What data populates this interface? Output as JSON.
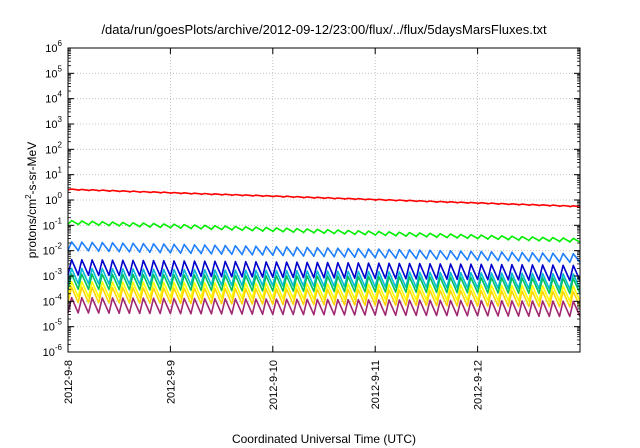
{
  "chart_data": {
    "type": "line",
    "title": "/data/run/goesPlots/archive/2012-09-12/23:00/flux/../flux/5daysMarsFluxes.txt",
    "xlabel": "Coordinated Universal Time (UTC)",
    "ylabel": "protons/cm2-s-sr-MeV",
    "x_ticks": [
      "2012-9-8",
      "2012-9-9",
      "2012-9-10",
      "2012-9-11",
      "2012-9-12"
    ],
    "xlim_days": [
      0,
      5.0
    ],
    "y_scale": "log",
    "ylim": [
      1e-06,
      1000000.0
    ],
    "y_ticks": [
      {
        "base": "10",
        "exp": "-6"
      },
      {
        "base": "10",
        "exp": "-5"
      },
      {
        "base": "10",
        "exp": "-4"
      },
      {
        "base": "10",
        "exp": "-3"
      },
      {
        "base": "10",
        "exp": "-2"
      },
      {
        "base": "10",
        "exp": "-1"
      },
      {
        "base": "10",
        "exp": "0"
      },
      {
        "base": "10",
        "exp": "1"
      },
      {
        "base": "10",
        "exp": "2"
      },
      {
        "base": "10",
        "exp": "3"
      },
      {
        "base": "10",
        "exp": "4"
      },
      {
        "base": "10",
        "exp": "5"
      },
      {
        "base": "10",
        "exp": "6"
      }
    ],
    "grid": true,
    "series": [
      {
        "color": "#ff0000",
        "start": 2.6,
        "end": 0.55,
        "sawtooth_amplitude": 1.08,
        "period_days": 0.1
      },
      {
        "color": "#00ee00",
        "start": 0.13,
        "end": 0.025,
        "sawtooth_amplitude": 1.4,
        "period_days": 0.1
      },
      {
        "color": "#1e7fff",
        "start": 0.015,
        "end": 0.005,
        "sawtooth_amplitude": 2.2,
        "period_days": 0.1
      },
      {
        "color": "#0000cc",
        "start": 0.0022,
        "end": 0.0013,
        "sawtooth_amplitude": 4.0,
        "period_days": 0.1
      },
      {
        "color": "#00bcd4",
        "start": 0.001,
        "end": 0.0006,
        "sawtooth_amplitude": 4.0,
        "period_days": 0.1
      },
      {
        "color": "#00c060",
        "start": 0.0006,
        "end": 0.0004,
        "sawtooth_amplitude": 4.0,
        "period_days": 0.1
      },
      {
        "color": "#ffff00",
        "start": 0.0003,
        "end": 0.0002,
        "sawtooth_amplitude": 4.0,
        "period_days": 0.1
      },
      {
        "color": "#ffd500",
        "start": 0.00018,
        "end": 0.00012,
        "sawtooth_amplitude": 4.0,
        "period_days": 0.1
      },
      {
        "color": "#a02870",
        "start": 7e-05,
        "end": 5e-05,
        "sawtooth_amplitude": 4.0,
        "period_days": 0.1
      }
    ]
  }
}
